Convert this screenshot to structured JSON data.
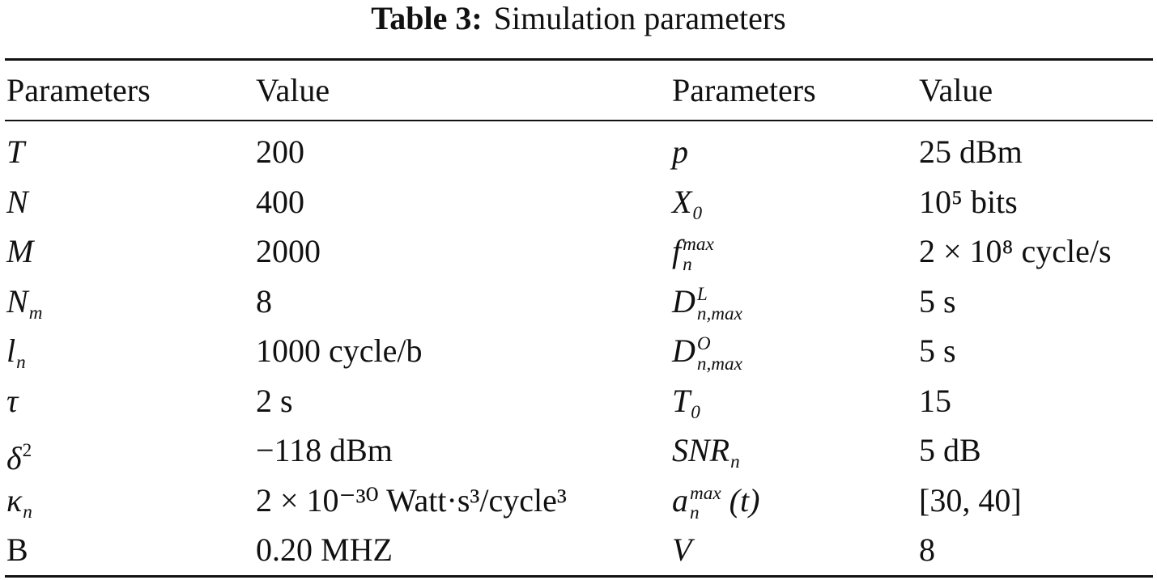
{
  "title": {
    "label": "Table 3:",
    "text": "Simulation parameters"
  },
  "table": {
    "header": [
      "Parameters",
      "Value",
      "Parameters",
      "Value"
    ],
    "rows": [
      [
        {
          "base": "T"
        },
        "200",
        {
          "base": "p"
        },
        "25 dBm"
      ],
      [
        {
          "base": "N"
        },
        "400",
        {
          "base": "X",
          "sub": "0"
        },
        "10⁵ bits"
      ],
      [
        {
          "base": "M"
        },
        "2000",
        {
          "base": "f",
          "sub": "n",
          "sup": "max"
        },
        "2 × 10⁸ cycle/s"
      ],
      [
        {
          "base": "N",
          "sub": "m"
        },
        "8",
        {
          "base": "D",
          "sub": "n,max",
          "sup": "L"
        },
        "5 s"
      ],
      [
        {
          "base": "l",
          "sub": "n"
        },
        "1000 cycle/b",
        {
          "base": "D",
          "sub": "n,max",
          "sup": "O"
        },
        "5 s"
      ],
      [
        {
          "base": "τ"
        },
        "2 s",
        {
          "base": "T",
          "sub": "0"
        },
        "15"
      ],
      [
        {
          "base": "δ",
          "sup": "2"
        },
        "−118 dBm",
        {
          "base": "SNR",
          "sub": "n"
        },
        "5 dB"
      ],
      [
        {
          "base": "κ",
          "sub": "n"
        },
        "2 × 10⁻³⁰ Watt·s³/cycle³",
        {
          "base": "a",
          "sub": "n",
          "sup": "max",
          "suffix": " (t)"
        },
        "[30, 40]"
      ],
      [
        {
          "base": "B",
          "upright": true
        },
        "0.20 MHZ",
        {
          "base": "V"
        },
        "8"
      ]
    ]
  }
}
